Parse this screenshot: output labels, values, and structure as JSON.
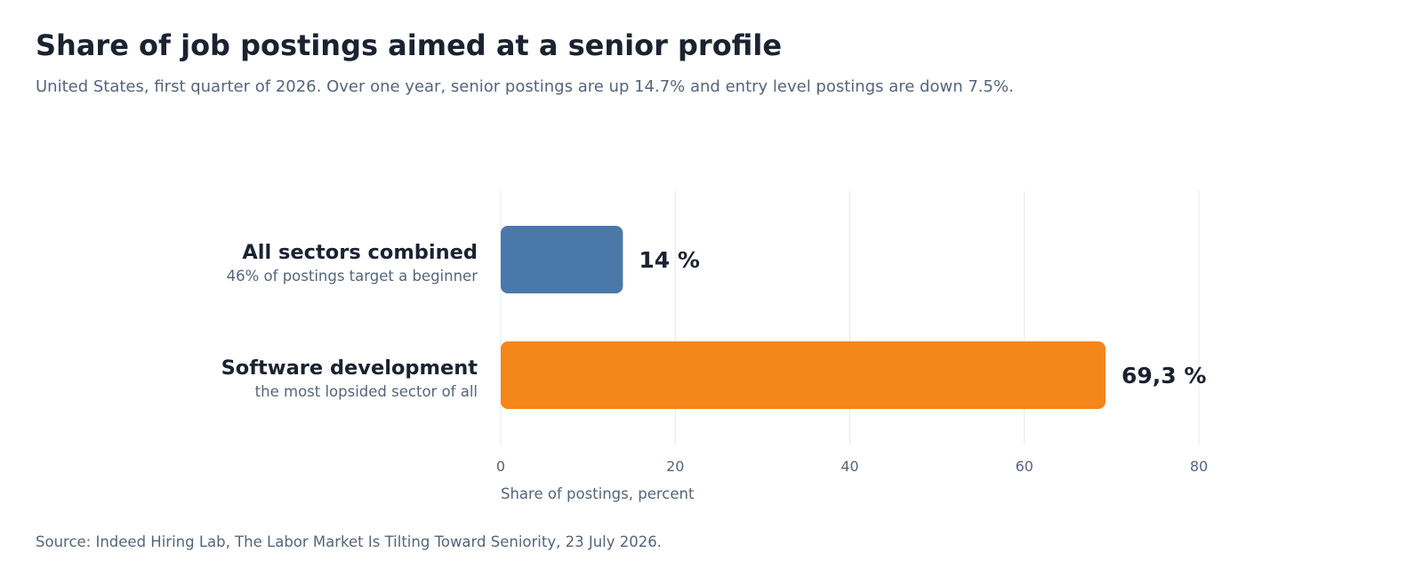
{
  "header": {
    "title": "Share of job postings aimed at a senior profile",
    "subtitle": "United States, first quarter of 2026. Over one year, senior postings are up 14.7% and entry level postings are down 7.5%."
  },
  "footer": {
    "source": "Source: Indeed Hiring Lab, The Labor Market Is Tilting Toward Seniority, 23 July 2026."
  },
  "chart_data": {
    "type": "bar",
    "orientation": "horizontal",
    "categories": [
      "All sectors combined",
      "Software development"
    ],
    "category_notes": [
      "46% of postings target a beginner",
      "the most lopsided sector of all"
    ],
    "values": [
      14,
      69.3
    ],
    "value_labels": [
      "14 %",
      "69,3 %"
    ],
    "bar_colors": [
      "#4a78a8",
      "#f5861a"
    ],
    "xlabel": "Share of postings, percent",
    "xlim": [
      0,
      80
    ],
    "xticks": [
      0,
      20,
      40,
      60,
      80
    ],
    "grid": "vertical"
  }
}
